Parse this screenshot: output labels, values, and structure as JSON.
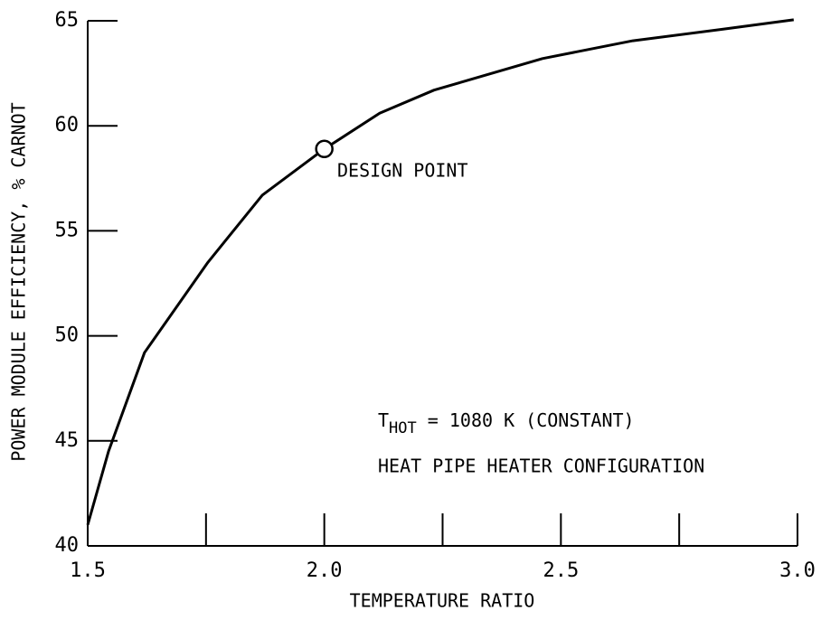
{
  "chart_data": {
    "type": "line",
    "xlabel": "TEMPERATURE RATIO",
    "ylabel": "POWER MODULE EFFICIENCY, % CARNOT",
    "x": [
      1.5,
      1.544,
      1.62,
      1.754,
      1.869,
      1.997,
      2.117,
      2.232,
      2.461,
      2.652,
      2.843,
      2.992
    ],
    "series": [
      {
        "color": "#000000",
        "values": [
          41.0,
          44.5,
          49.2,
          53.5,
          56.7,
          58.85,
          60.6,
          61.7,
          63.2,
          64.05,
          64.6,
          65.05
        ]
      }
    ],
    "design_point": {
      "x": 2.0,
      "y": 58.9,
      "label": "DESIGN POINT"
    },
    "annotation": {
      "t": "T",
      "sub": "HOT",
      "rest": " = 1080 K (CONSTANT)",
      "line2": "HEAT PIPE HEATER CONFIGURATION"
    },
    "xlim": [
      1.5,
      3.0
    ],
    "ylim": [
      40,
      65
    ],
    "xticks": [
      1.5,
      {
        "value": 2,
        "label": "2.0"
      },
      2.5,
      {
        "value": 3,
        "label": "3.0"
      }
    ],
    "xminorticks": [
      1.75,
      2.25,
      2.75
    ],
    "yticks": [
      40,
      45,
      50,
      55,
      60,
      65
    ],
    "grid": false
  }
}
